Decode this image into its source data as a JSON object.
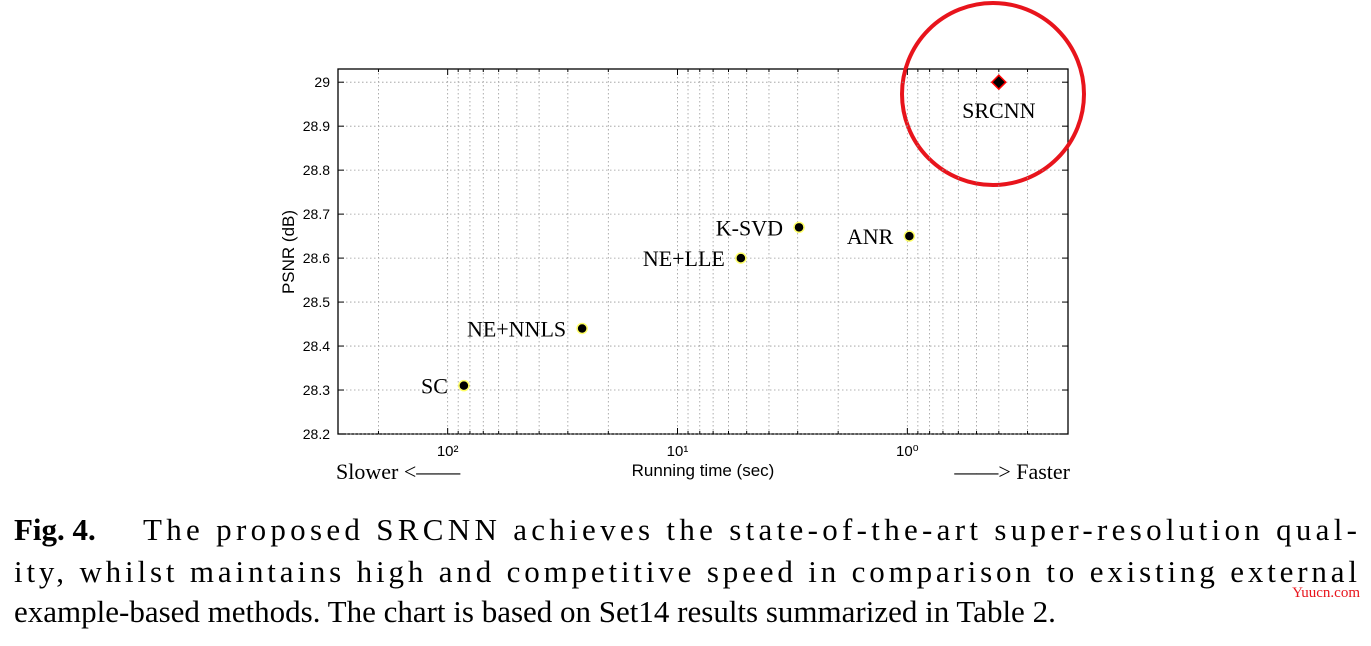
{
  "chart_data": {
    "type": "scatter",
    "xlabel": "Running time (sec)",
    "ylabel": "PSNR (dB)",
    "x_left_note": "Slower <——",
    "x_right_note": "——> Faster",
    "xscale": "log",
    "xlim": [
      300,
      0.2
    ],
    "xticks": [
      {
        "value": 100,
        "label": "10²"
      },
      {
        "value": 10,
        "label": "10¹"
      },
      {
        "value": 1,
        "label": "10⁰"
      }
    ],
    "xminorticks": [
      200,
      90,
      80,
      70,
      60,
      50,
      40,
      30,
      20,
      9,
      8,
      7,
      6,
      5,
      4,
      3,
      2,
      0.9,
      0.8,
      0.7,
      0.6,
      0.5,
      0.4,
      0.3
    ],
    "ylim": [
      28.2,
      29.03
    ],
    "yticks": [
      28.2,
      28.3,
      28.4,
      28.5,
      28.6,
      28.7,
      28.8,
      28.9,
      29
    ],
    "grid": true,
    "labels": [
      "SC",
      "NE+NNLS",
      "NE+LLE",
      "K-SVD",
      "ANR",
      "SRCNN"
    ],
    "x": [
      85,
      26,
      5.3,
      2.96,
      0.98,
      0.4
    ],
    "values": [
      28.31,
      28.44,
      28.6,
      28.67,
      28.65,
      29.0
    ],
    "markers": [
      "circle",
      "circle",
      "circle",
      "circle",
      "circle",
      "diamond"
    ],
    "colors": [
      "#000000",
      "#000000",
      "#000000",
      "#000000",
      "#000000",
      "#000000"
    ],
    "edge_colors": [
      "#ffff66",
      "#ffff66",
      "#ffff66",
      "#ffff66",
      "#ffff66",
      "#ff0000"
    ]
  },
  "caption": {
    "label": "Fig. 4.",
    "lines": [
      "The proposed SRCNN achieves the state-of-the-art super-resolution qual-",
      "ity, whilst maintains high and competitive speed in comparison to existing external",
      "example-based methods. The chart is based on Set14 results summarized in Table 2."
    ]
  },
  "watermark": "Yuucn.com"
}
